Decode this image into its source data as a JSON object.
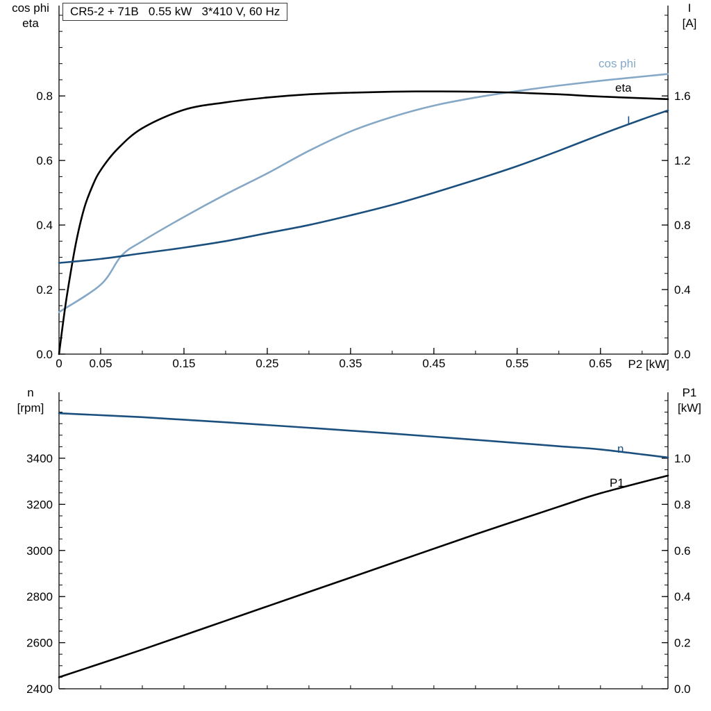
{
  "page": {
    "background": "#ffffff"
  },
  "colors": {
    "axis": "#000000",
    "cos_phi": "#85a8c6",
    "eta": "#000000",
    "current": "#1b4f7e",
    "speed": "#1b4f7e",
    "power": "#000000"
  },
  "chart_data": [
    {
      "type": "line",
      "title": "CR5-2 + 71B   0.55 kW   3*410 V, 60 Hz",
      "xlabel": "P2 [kW]",
      "ylabel_left_lines": [
        "cos phi",
        "eta"
      ],
      "ylabel_right_lines": [
        "I",
        "[A]"
      ],
      "xlim": [
        0,
        0.731
      ],
      "ylim_left": [
        0,
        1.08
      ],
      "ylim_right": [
        0,
        2.16
      ],
      "x_minor_step": 0.05,
      "y_minor_step_left": 0.05,
      "y_minor_step_right": 0.1,
      "grid": false,
      "xticks": [
        {
          "v": 0,
          "t": "0"
        },
        {
          "v": 0.05,
          "t": "0.05"
        },
        {
          "v": 0.15,
          "t": "0.15"
        },
        {
          "v": 0.25,
          "t": "0.25"
        },
        {
          "v": 0.35,
          "t": "0.35"
        },
        {
          "v": 0.45,
          "t": "0.45"
        },
        {
          "v": 0.55,
          "t": "0.55"
        },
        {
          "v": 0.65,
          "t": "0.65"
        }
      ],
      "yticks_left": [
        {
          "v": 0,
          "t": "0.0"
        },
        {
          "v": 0.2,
          "t": "0.2"
        },
        {
          "v": 0.4,
          "t": "0.4"
        },
        {
          "v": 0.6,
          "t": "0.6"
        },
        {
          "v": 0.8,
          "t": "0.8"
        }
      ],
      "yticks_right": [
        {
          "v": 0,
          "t": "0.0"
        },
        {
          "v": 0.4,
          "t": "0.4"
        },
        {
          "v": 0.8,
          "t": "0.8"
        },
        {
          "v": 1.2,
          "t": "1.2"
        },
        {
          "v": 1.6,
          "t": "1.6"
        }
      ],
      "series": [
        {
          "name": "cos phi",
          "axis": "left",
          "color": "#85a8c6",
          "points": [
            [
              0,
              0.13
            ],
            [
              0.05,
              0.215
            ],
            [
              0.075,
              0.305
            ],
            [
              0.1,
              0.35
            ],
            [
              0.15,
              0.425
            ],
            [
              0.2,
              0.495
            ],
            [
              0.25,
              0.56
            ],
            [
              0.3,
              0.63
            ],
            [
              0.35,
              0.69
            ],
            [
              0.4,
              0.735
            ],
            [
              0.45,
              0.77
            ],
            [
              0.5,
              0.795
            ],
            [
              0.55,
              0.815
            ],
            [
              0.6,
              0.832
            ],
            [
              0.65,
              0.847
            ],
            [
              0.7,
              0.86
            ],
            [
              0.731,
              0.868
            ]
          ]
        },
        {
          "name": "eta",
          "axis": "left",
          "color": "#000000",
          "points": [
            [
              0,
              0
            ],
            [
              0.005,
              0.1
            ],
            [
              0.01,
              0.19
            ],
            [
              0.02,
              0.34
            ],
            [
              0.03,
              0.45
            ],
            [
              0.04,
              0.52
            ],
            [
              0.05,
              0.57
            ],
            [
              0.07,
              0.635
            ],
            [
              0.1,
              0.7
            ],
            [
              0.15,
              0.757
            ],
            [
              0.2,
              0.78
            ],
            [
              0.25,
              0.795
            ],
            [
              0.3,
              0.805
            ],
            [
              0.35,
              0.81
            ],
            [
              0.4,
              0.813
            ],
            [
              0.45,
              0.814
            ],
            [
              0.5,
              0.813
            ],
            [
              0.55,
              0.81
            ],
            [
              0.6,
              0.805
            ],
            [
              0.65,
              0.798
            ],
            [
              0.731,
              0.79
            ]
          ]
        },
        {
          "name": "I",
          "axis": "right",
          "color": "#1b4f7e",
          "points": [
            [
              0,
              0.565
            ],
            [
              0.05,
              0.59
            ],
            [
              0.1,
              0.625
            ],
            [
              0.15,
              0.66
            ],
            [
              0.2,
              0.7
            ],
            [
              0.25,
              0.75
            ],
            [
              0.3,
              0.8
            ],
            [
              0.35,
              0.86
            ],
            [
              0.4,
              0.925
            ],
            [
              0.45,
              1.0
            ],
            [
              0.5,
              1.08
            ],
            [
              0.55,
              1.165
            ],
            [
              0.6,
              1.26
            ],
            [
              0.65,
              1.36
            ],
            [
              0.7,
              1.455
            ],
            [
              0.731,
              1.51
            ]
          ]
        }
      ]
    },
    {
      "type": "line",
      "title": "",
      "xlabel": "",
      "ylabel_left_lines": [
        "n",
        "[rpm]"
      ],
      "ylabel_right_lines": [
        "P1",
        "[kW]"
      ],
      "xlim": [
        0,
        0.731
      ],
      "ylim_left": [
        2400,
        3686
      ],
      "ylim_right": [
        0,
        1.286
      ],
      "x_minor_step": 0.05,
      "y_minor_step_left": 50,
      "y_minor_step_right": 0.05,
      "grid": false,
      "xticks": [],
      "yticks_left": [
        {
          "v": 2400,
          "t": "2400"
        },
        {
          "v": 2600,
          "t": "2600"
        },
        {
          "v": 2800,
          "t": "2800"
        },
        {
          "v": 3000,
          "t": "3000"
        },
        {
          "v": 3200,
          "t": "3200"
        },
        {
          "v": 3400,
          "t": "3400"
        }
      ],
      "yticks_right": [
        {
          "v": 0,
          "t": "0.0"
        },
        {
          "v": 0.2,
          "t": "0.2"
        },
        {
          "v": 0.4,
          "t": "0.4"
        },
        {
          "v": 0.6,
          "t": "0.6"
        },
        {
          "v": 0.8,
          "t": "0.8"
        },
        {
          "v": 1,
          "t": "1.0"
        }
      ],
      "series": [
        {
          "name": "n",
          "axis": "left",
          "color": "#1b4f7e",
          "points": [
            [
              0,
              3595
            ],
            [
              0.1,
              3578
            ],
            [
              0.2,
              3556
            ],
            [
              0.3,
              3532
            ],
            [
              0.4,
              3507
            ],
            [
              0.5,
              3480
            ],
            [
              0.6,
              3452
            ],
            [
              0.65,
              3438
            ],
            [
              0.731,
              3403
            ]
          ]
        },
        {
          "name": "P1",
          "axis": "right",
          "color": "#000000",
          "points": [
            [
              0,
              0.05
            ],
            [
              0.1,
              0.17
            ],
            [
              0.2,
              0.295
            ],
            [
              0.3,
              0.42
            ],
            [
              0.4,
              0.545
            ],
            [
              0.5,
              0.67
            ],
            [
              0.6,
              0.79
            ],
            [
              0.65,
              0.848
            ],
            [
              0.731,
              0.925
            ]
          ]
        }
      ]
    }
  ]
}
